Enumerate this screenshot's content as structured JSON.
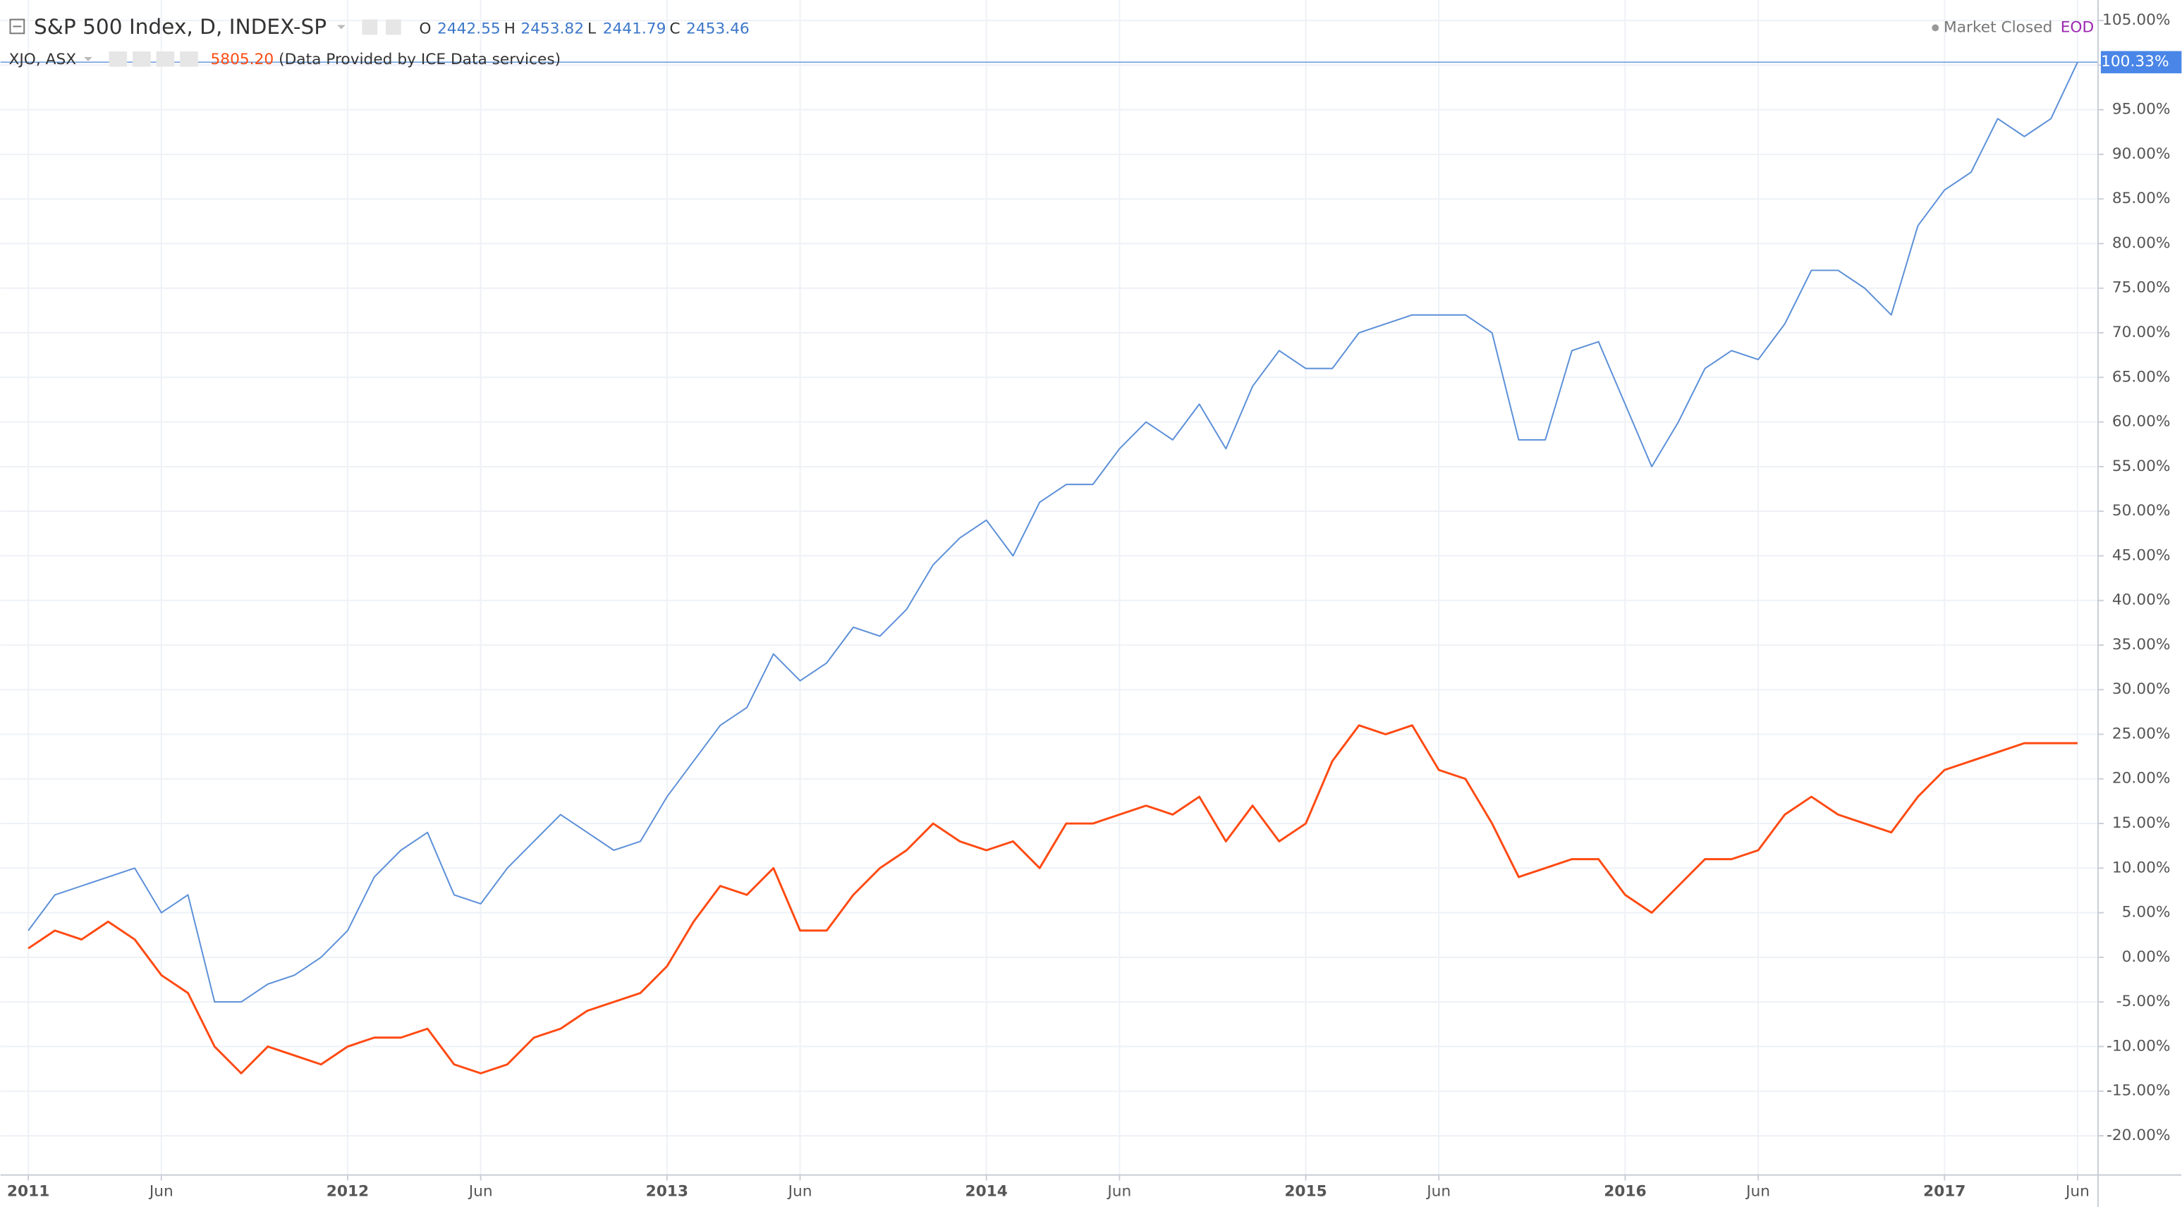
{
  "legend": {
    "main": {
      "title": "S&P 500 Index, D, INDEX-SP",
      "o_label": "O",
      "o": "2442.55",
      "h_label": "H",
      "h": "2453.82",
      "l_label": "L",
      "l": "2441.79",
      "c_label": "C",
      "c": "2453.46"
    },
    "compare": {
      "title": "XJO, ASX",
      "last": "5805.20",
      "note": "(Data Provided by ICE Data services)"
    },
    "status": "Market Closed",
    "eod": "EOD"
  },
  "chart_data": {
    "type": "line",
    "x": [
      "2011-01",
      "2011-02",
      "2011-03",
      "2011-04",
      "2011-05",
      "2011-06",
      "2011-07",
      "2011-08",
      "2011-09",
      "2011-10",
      "2011-11",
      "2011-12",
      "2012-01",
      "2012-02",
      "2012-03",
      "2012-04",
      "2012-05",
      "2012-06",
      "2012-07",
      "2012-08",
      "2012-09",
      "2012-10",
      "2012-11",
      "2012-12",
      "2013-01",
      "2013-02",
      "2013-03",
      "2013-04",
      "2013-05",
      "2013-06",
      "2013-07",
      "2013-08",
      "2013-09",
      "2013-10",
      "2013-11",
      "2013-12",
      "2014-01",
      "2014-02",
      "2014-03",
      "2014-04",
      "2014-05",
      "2014-06",
      "2014-07",
      "2014-08",
      "2014-09",
      "2014-10",
      "2014-11",
      "2014-12",
      "2015-01",
      "2015-02",
      "2015-03",
      "2015-04",
      "2015-05",
      "2015-06",
      "2015-07",
      "2015-08",
      "2015-09",
      "2015-10",
      "2015-11",
      "2015-12",
      "2016-01",
      "2016-02",
      "2016-03",
      "2016-04",
      "2016-05",
      "2016-06",
      "2016-07",
      "2016-08",
      "2016-09",
      "2016-10",
      "2016-11",
      "2016-12",
      "2017-01",
      "2017-02",
      "2017-03",
      "2017-04",
      "2017-05",
      "2017-06"
    ],
    "series": [
      {
        "name": "S&P 500 Index",
        "color": "#5b8fd8",
        "values": [
          3,
          7,
          8,
          9,
          10,
          5,
          7,
          -5,
          -5,
          -3,
          -2,
          0,
          3,
          9,
          12,
          14,
          7,
          6,
          10,
          13,
          16,
          14,
          12,
          13,
          18,
          22,
          26,
          28,
          34,
          31,
          33,
          37,
          36,
          39,
          44,
          47,
          49,
          45,
          51,
          53,
          53,
          57,
          60,
          58,
          62,
          57,
          64,
          68,
          66,
          66,
          70,
          71,
          72,
          72,
          72,
          70,
          58,
          58,
          68,
          69,
          62,
          55,
          60,
          66,
          68,
          67,
          71,
          77,
          77,
          75,
          72,
          82,
          86,
          88,
          94,
          92,
          94,
          100.33
        ],
        "value_labels": [
          null,
          null,
          null,
          null,
          null,
          null,
          null,
          null,
          null,
          null,
          null,
          null,
          null,
          null,
          null,
          null,
          null,
          null,
          null,
          null,
          null,
          null,
          null,
          null,
          null,
          null,
          null,
          null,
          null,
          null,
          null,
          null,
          null,
          null,
          null,
          null,
          null,
          null,
          null,
          null,
          null,
          null,
          null,
          null,
          null,
          null,
          null,
          null,
          null,
          null,
          null,
          null,
          null,
          null,
          null,
          null,
          null,
          null,
          null,
          null,
          null,
          null,
          null,
          null,
          null,
          null,
          null,
          null,
          null,
          null,
          null,
          null,
          null,
          null,
          null,
          null,
          null,
          "100.33%"
        ]
      },
      {
        "name": "XJO, ASX",
        "color": "#ff4a12",
        "values": [
          1,
          3,
          2,
          4,
          2,
          -2,
          -4,
          -10,
          -13,
          -10,
          -11,
          -12,
          -10,
          -9,
          -9,
          -8,
          -12,
          -13,
          -12,
          -9,
          -8,
          -6,
          -5,
          -4,
          -1,
          4,
          8,
          7,
          10,
          3,
          3,
          7,
          10,
          12,
          15,
          13,
          12,
          13,
          10,
          15,
          15,
          16,
          17,
          16,
          18,
          13,
          17,
          13,
          15,
          22,
          26,
          25,
          26,
          21,
          20,
          15,
          9,
          10,
          11,
          11,
          7,
          5,
          8,
          11,
          11,
          12,
          16,
          18,
          16,
          15,
          14,
          18,
          21,
          22,
          23,
          24,
          24,
          24
        ]
      }
    ],
    "ylim": [
      -24.4,
      107.3
    ],
    "yticks": [
      {
        "value": 105,
        "label": "105.00%"
      },
      {
        "value": 100,
        "label": "100.00%"
      },
      {
        "value": 95,
        "label": "95.00%"
      },
      {
        "value": 90,
        "label": "90.00%"
      },
      {
        "value": 85,
        "label": "85.00%"
      },
      {
        "value": 80,
        "label": "80.00%"
      },
      {
        "value": 75,
        "label": "75.00%"
      },
      {
        "value": 70,
        "label": "70.00%"
      },
      {
        "value": 65,
        "label": "65.00%"
      },
      {
        "value": 60,
        "label": "60.00%"
      },
      {
        "value": 55,
        "label": "55.00%"
      },
      {
        "value": 50,
        "label": "50.00%"
      },
      {
        "value": 45,
        "label": "45.00%"
      },
      {
        "value": 40,
        "label": "40.00%"
      },
      {
        "value": 35,
        "label": "35.00%"
      },
      {
        "value": 30,
        "label": "30.00%"
      },
      {
        "value": 25,
        "label": "25.00%"
      },
      {
        "value": 20,
        "label": "20.00%"
      },
      {
        "value": 15,
        "label": "15.00%"
      },
      {
        "value": 10,
        "label": "10.00%"
      },
      {
        "value": 5,
        "label": "5.00%"
      },
      {
        "value": 0,
        "label": "0.00%"
      },
      {
        "value": -5,
        "label": "-5.00%"
      },
      {
        "value": -10,
        "label": "-10.00%"
      },
      {
        "value": -15,
        "label": "-15.00%"
      },
      {
        "value": -20,
        "label": "-20.00%"
      }
    ],
    "xticks": [
      {
        "value": "2011-01",
        "label": "2011"
      },
      {
        "value": "2011-06",
        "label": "Jun"
      },
      {
        "value": "2012-01",
        "label": "2012"
      },
      {
        "value": "2012-06",
        "label": "Jun"
      },
      {
        "value": "2013-01",
        "label": "2013"
      },
      {
        "value": "2013-06",
        "label": "Jun"
      },
      {
        "value": "2014-01",
        "label": "2014"
      },
      {
        "value": "2014-06",
        "label": "Jun"
      },
      {
        "value": "2015-01",
        "label": "2015"
      },
      {
        "value": "2015-06",
        "label": "Jun"
      },
      {
        "value": "2016-01",
        "label": "2016"
      },
      {
        "value": "2016-06",
        "label": "Jun"
      },
      {
        "value": "2017-01",
        "label": "2017"
      },
      {
        "value": "2017-06",
        "label": "Jun"
      }
    ],
    "grid": true
  }
}
